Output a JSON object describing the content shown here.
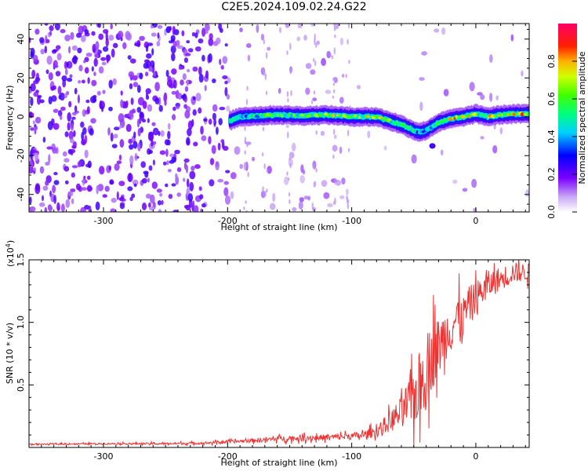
{
  "title": "C2E5.2024.109.02.24.G22",
  "chart_data": [
    {
      "type": "heatmap",
      "xlabel": "Height of straight line (km)",
      "ylabel": "Frequency (Hz)",
      "xlim": [
        -360,
        43
      ],
      "ylim": [
        -49,
        48
      ],
      "x_ticks": [
        -300,
        -200,
        -100,
        0
      ],
      "y_ticks": [
        -40,
        -20,
        0,
        20,
        40
      ],
      "colorbar": {
        "label": "Normalized spectral amplitude",
        "range": [
          0,
          1
        ],
        "ticks": [
          0.0,
          0.2,
          0.4,
          0.6,
          0.8
        ],
        "tick_labels": [
          "0.0",
          "0.2",
          "0.4",
          "0.6",
          "0.8"
        ]
      },
      "ridge": {
        "x": [
          -198,
          -190,
          -175,
          -160,
          -140,
          -120,
          -100,
          -80,
          -70,
          -60,
          -50,
          -45,
          -40,
          -35,
          -30,
          -20,
          -10,
          0,
          10,
          20,
          30,
          43
        ],
        "y": [
          -2,
          0,
          0.5,
          1,
          0.5,
          1,
          0,
          0,
          -2,
          -4,
          -7,
          -8,
          -7,
          -5,
          -3,
          -1,
          0,
          1.5,
          0,
          1,
          1.5,
          1.5
        ],
        "peak_amplitude": [
          0.5,
          0.5,
          0.6,
          0.7,
          0.7,
          0.75,
          0.75,
          0.8,
          0.7,
          0.6,
          0.55,
          0.45,
          0.45,
          0.5,
          0.6,
          0.85,
          0.85,
          0.7,
          0.85,
          0.85,
          0.9,
          0.9
        ]
      },
      "noise_region": {
        "x_from": -360,
        "x_to": -200,
        "amplitude": 0.15
      }
    },
    {
      "type": "line",
      "xlabel": "Height of straight line (km)",
      "ylabel": "SNR (10 * v/v)",
      "multiplier": "(x10",
      "multiplier_exp": "4",
      "multiplier_close": ")",
      "xlim": [
        -360,
        43
      ],
      "ylim": [
        0,
        15000
      ],
      "x_ticks": [
        -300,
        -200,
        -100,
        0
      ],
      "y_ticks": [
        5000,
        10000,
        15000
      ],
      "y_tick_labels": [
        "0.5",
        "1.0",
        "1.5"
      ],
      "color": "#ee3333",
      "series": [
        {
          "x": [
            -360,
            -300,
            -250,
            -220,
            -200,
            -180,
            -160,
            -140,
            -120,
            -100,
            -90,
            -80,
            -70,
            -60,
            -55,
            -50,
            -45,
            -40,
            -35,
            -30,
            -25,
            -20,
            -15,
            -10,
            -5,
            0,
            10,
            20,
            30,
            43
          ],
          "y": [
            250,
            300,
            300,
            350,
            450,
            550,
            700,
            750,
            800,
            900,
            1000,
            1300,
            2000,
            2800,
            3500,
            4000,
            5000,
            6000,
            7500,
            8000,
            9000,
            9500,
            10500,
            10500,
            11500,
            12000,
            13000,
            13500,
            14000,
            14000
          ],
          "noise_amplitude": [
            50,
            80,
            100,
            130,
            150,
            200,
            250,
            300,
            300,
            350,
            400,
            600,
            1000,
            1600,
            2200,
            3000,
            3500,
            3500,
            3500,
            3000,
            2600,
            2400,
            2200,
            2000,
            1800,
            1600,
            1400,
            1200,
            1000,
            900
          ]
        }
      ]
    }
  ]
}
